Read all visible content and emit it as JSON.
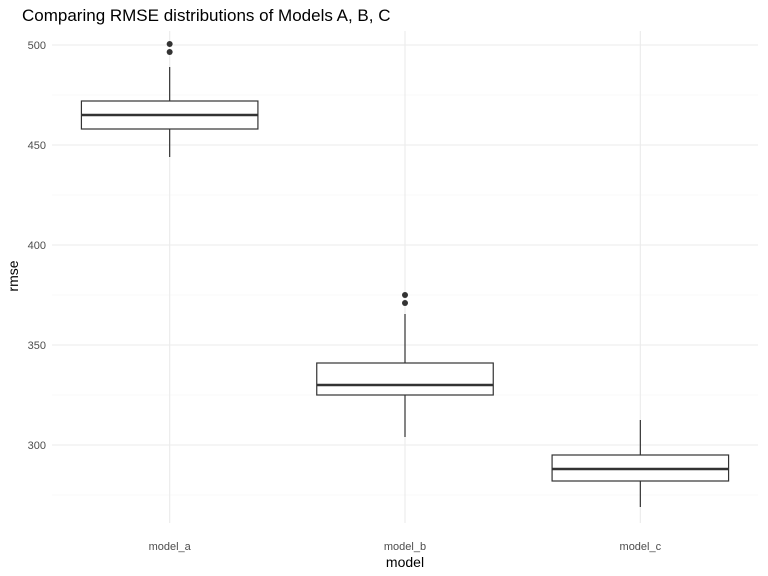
{
  "chart_data": {
    "type": "boxplot",
    "title": "Comparing RMSE distributions of Models A, B, C",
    "xlabel": "model",
    "ylabel": "rmse",
    "categories": [
      "model_a",
      "model_b",
      "model_c"
    ],
    "ylim": [
      261,
      507
    ],
    "yticks": [
      300,
      350,
      400,
      450,
      500
    ],
    "grid": true,
    "boxes": [
      {
        "category": "model_a",
        "whisker_low": 444,
        "q1": 458,
        "median": 465,
        "q3": 472,
        "whisker_high": 489,
        "outliers": [
          496.5,
          500.5
        ]
      },
      {
        "category": "model_b",
        "whisker_low": 304,
        "q1": 325,
        "median": 330,
        "q3": 341,
        "whisker_high": 365.5,
        "outliers": [
          371,
          375
        ]
      },
      {
        "category": "model_c",
        "whisker_low": 269,
        "q1": 282,
        "median": 288,
        "q3": 295,
        "whisker_high": 312.5,
        "outliers": []
      }
    ]
  }
}
